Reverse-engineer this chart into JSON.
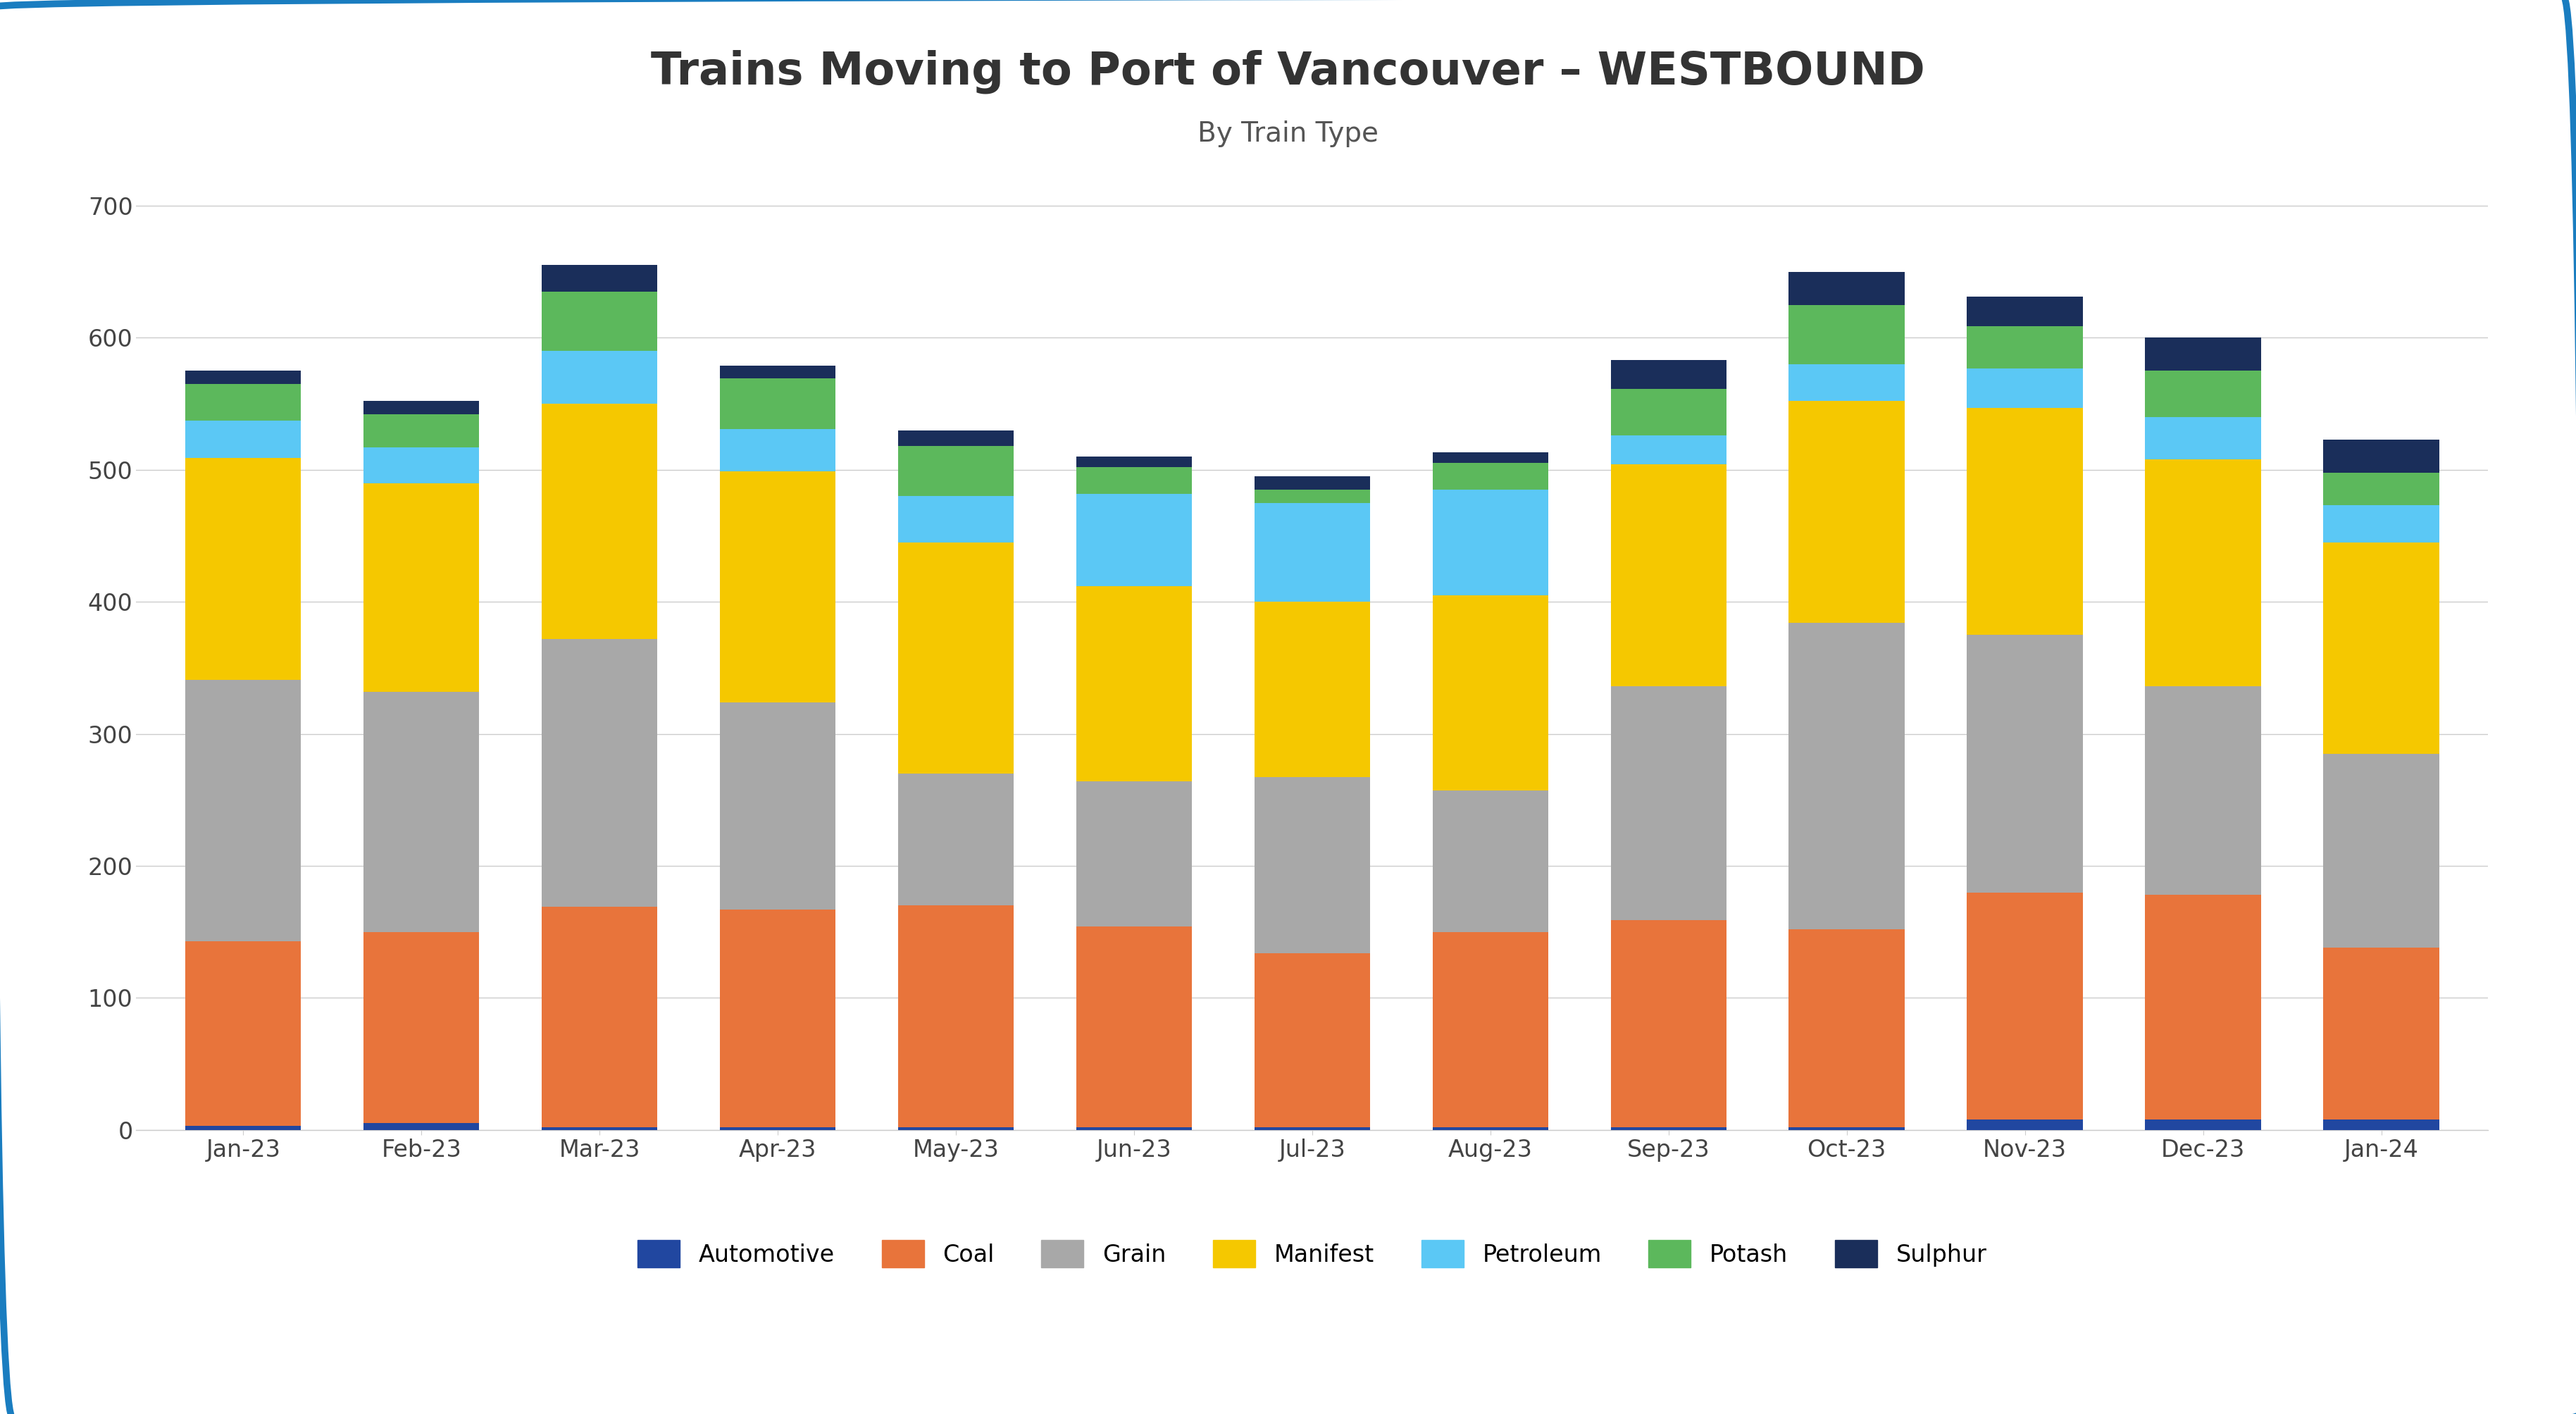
{
  "title": "Trains Moving to Port of Vancouver – WESTBOUND",
  "subtitle": "By Train Type",
  "months": [
    "Jan-23",
    "Feb-23",
    "Mar-23",
    "Apr-23",
    "May-23",
    "Jun-23",
    "Jul-23",
    "Aug-23",
    "Sep-23",
    "Oct-23",
    "Nov-23",
    "Dec-23",
    "Jan-24"
  ],
  "series": {
    "Automotive": [
      3,
      5,
      2,
      2,
      2,
      2,
      2,
      2,
      2,
      2,
      8,
      8,
      8
    ],
    "Coal": [
      140,
      145,
      167,
      165,
      168,
      152,
      132,
      148,
      157,
      150,
      172,
      170,
      130
    ],
    "Grain": [
      198,
      182,
      203,
      157,
      100,
      110,
      133,
      107,
      177,
      232,
      195,
      158,
      147
    ],
    "Manifest": [
      168,
      158,
      178,
      175,
      175,
      148,
      133,
      148,
      168,
      168,
      172,
      172,
      160
    ],
    "Petroleum": [
      28,
      27,
      40,
      32,
      35,
      70,
      75,
      80,
      22,
      28,
      30,
      32,
      28
    ],
    "Potash": [
      28,
      25,
      45,
      38,
      38,
      20,
      10,
      20,
      35,
      45,
      32,
      35,
      25
    ],
    "Sulphur": [
      10,
      10,
      20,
      10,
      12,
      8,
      10,
      8,
      22,
      25,
      22,
      25,
      25
    ]
  },
  "colors": {
    "Automotive": "#2147a0",
    "Coal": "#e8743b",
    "Grain": "#a8a8a8",
    "Manifest": "#f5c800",
    "Petroleum": "#5bc8f5",
    "Potash": "#5cb85c",
    "Sulphur": "#1a2e5a"
  },
  "ylim": [
    0,
    730
  ],
  "yticks": [
    0,
    100,
    200,
    300,
    400,
    500,
    600,
    700
  ],
  "background_color": "#ffffff",
  "border_color": "#1a7dc0",
  "title_fontsize": 46,
  "subtitle_fontsize": 28,
  "tick_fontsize": 24,
  "legend_fontsize": 24
}
